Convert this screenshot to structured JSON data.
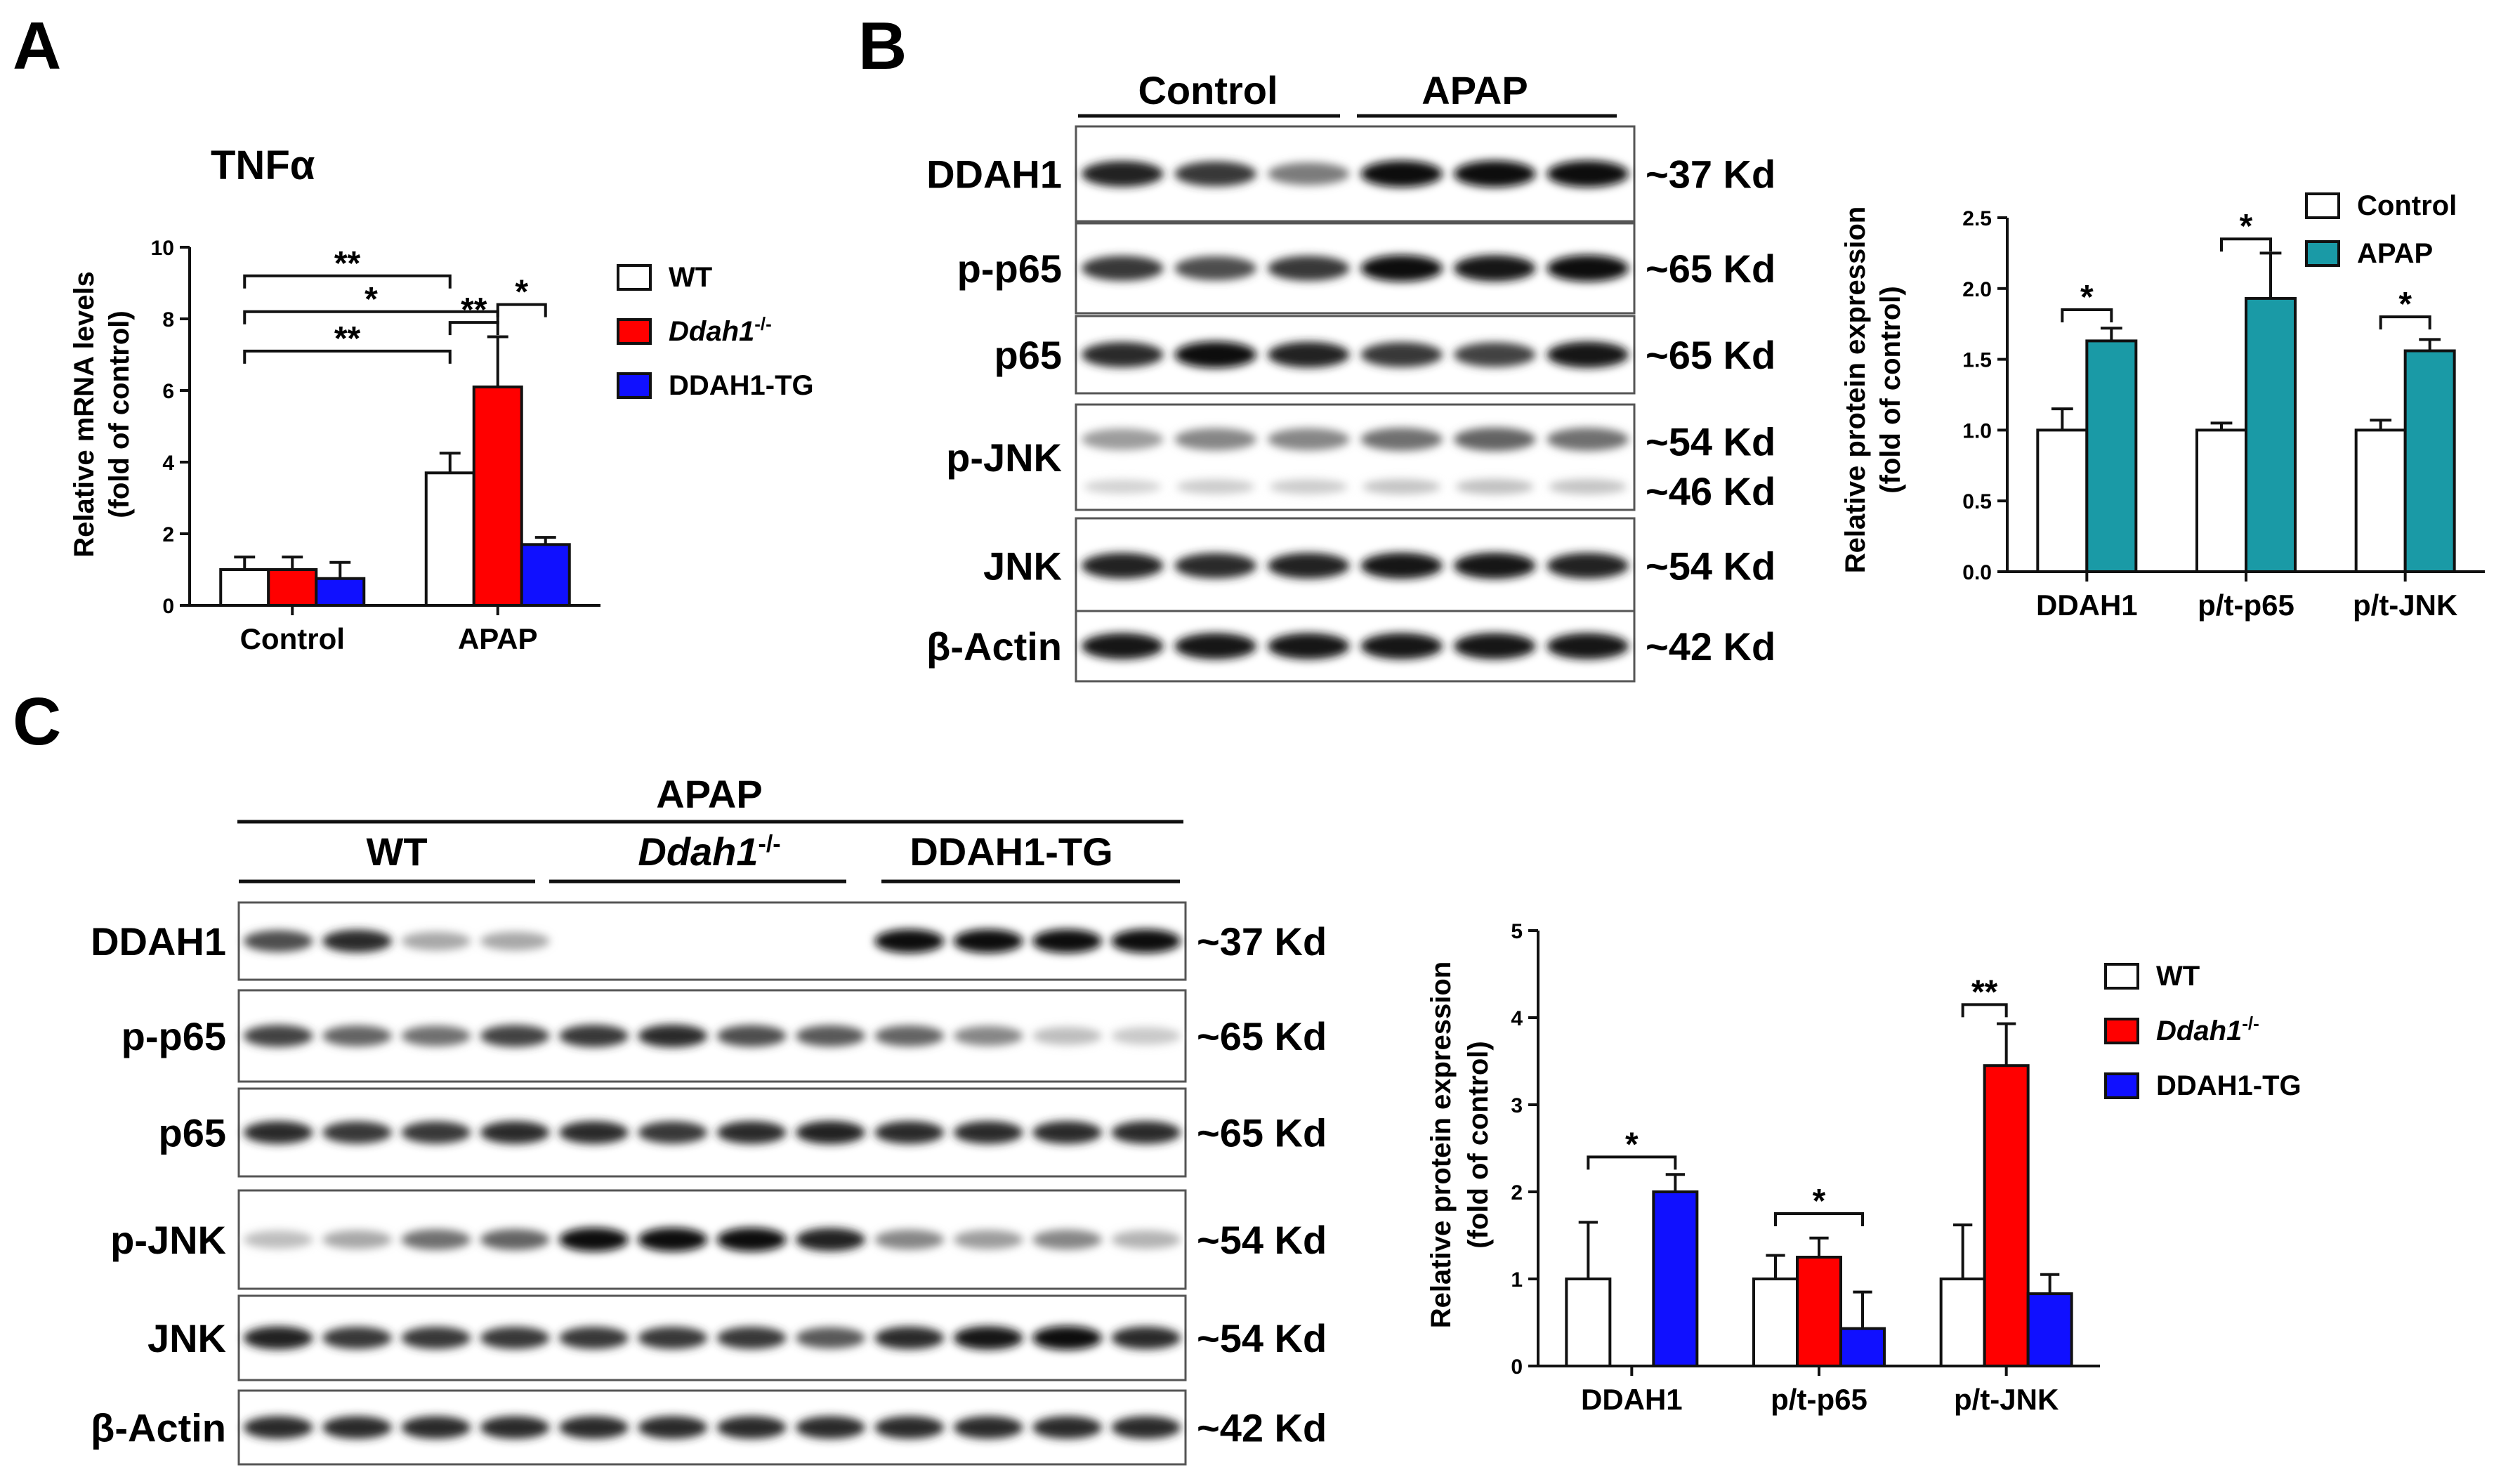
{
  "panel_labels": {
    "a": "A",
    "b": "B",
    "c": "C"
  },
  "colors": {
    "wt": "#ffffff",
    "ko": "#ff0000",
    "tg": "#1010ff",
    "control": "#ffffff",
    "apap": "#1a9aa6"
  },
  "chart_data": [
    {
      "id": "A",
      "type": "bar",
      "title": "TNFα",
      "ylabel_line1": "Relative mRNA levels",
      "ylabel_line2": "(fold of control)",
      "xlabel": "",
      "ylim": [
        0,
        10
      ],
      "yticks": [
        "0",
        "2",
        "4",
        "6",
        "8",
        "10"
      ],
      "categories": [
        "Control",
        "APAP"
      ],
      "series": [
        {
          "name": "WT",
          "values": [
            1.0,
            3.7
          ],
          "errors": [
            0.35,
            0.55
          ]
        },
        {
          "name": "Ddah1-/-",
          "values": [
            1.0,
            6.1
          ],
          "errors": [
            0.35,
            1.4
          ]
        },
        {
          "name": "DDAH1-TG",
          "values": [
            0.75,
            1.7
          ],
          "errors": [
            0.45,
            0.2
          ]
        }
      ],
      "legend": [
        {
          "label": "WT",
          "italic": false
        },
        {
          "label": "Ddah1",
          "sup": "-/-",
          "italic": true
        },
        {
          "label": "DDAH1-TG",
          "italic": false
        }
      ],
      "significance": [
        "*",
        "**",
        "**",
        "*",
        "**"
      ]
    },
    {
      "id": "B",
      "type": "bar",
      "ylabel_line1": "Relative protein expression",
      "ylabel_line2": "(fold of control)",
      "ylim": [
        0,
        2.5
      ],
      "yticks": [
        "0.0",
        "0.5",
        "1.0",
        "1.5",
        "2.0",
        "2.5"
      ],
      "categories": [
        "DDAH1",
        "p/t-p65",
        "p/t-JNK"
      ],
      "series": [
        {
          "name": "Control",
          "values": [
            1.0,
            1.0,
            1.0
          ],
          "errors": [
            0.15,
            0.05,
            0.07
          ]
        },
        {
          "name": "APAP",
          "values": [
            1.63,
            1.93,
            1.56
          ],
          "errors": [
            0.09,
            0.32,
            0.08
          ]
        }
      ],
      "legend": [
        {
          "label": "Control"
        },
        {
          "label": "APAP"
        }
      ],
      "significance": [
        "*",
        "*",
        "*"
      ]
    },
    {
      "id": "C",
      "type": "bar",
      "ylabel_line1": "Relative protein expression",
      "ylabel_line2": "(fold of control)",
      "ylim": [
        0,
        5
      ],
      "yticks": [
        "0",
        "1",
        "2",
        "3",
        "4",
        "5"
      ],
      "categories": [
        "DDAH1",
        "p/t-p65",
        "p/t-JNK"
      ],
      "series": [
        {
          "name": "WT",
          "values": [
            1.0,
            1.0,
            1.0
          ],
          "errors": [
            0.65,
            0.27,
            0.62
          ]
        },
        {
          "name": "Ddah1-/-",
          "values": [
            0.0,
            1.25,
            3.45
          ],
          "errors": [
            0.0,
            0.22,
            0.48
          ]
        },
        {
          "name": "DDAH1-TG",
          "values": [
            2.0,
            0.43,
            0.83
          ],
          "errors": [
            0.2,
            0.42,
            0.22
          ]
        }
      ],
      "legend": [
        {
          "label": "WT",
          "italic": false
        },
        {
          "label": "Ddah1",
          "sup": "-/-",
          "italic": true
        },
        {
          "label": "DDAH1-TG",
          "italic": false
        }
      ],
      "significance": [
        "*",
        "*",
        "**"
      ]
    }
  ],
  "blot_b": {
    "groups": [
      "Control",
      "APAP"
    ],
    "rows": [
      {
        "label": "DDAH1",
        "size": "~37 Kd"
      },
      {
        "label": "p-p65",
        "size": "~65 Kd"
      },
      {
        "label": "p65",
        "size": "~65 Kd"
      },
      {
        "label": "p-JNK",
        "size": "~54 Kd",
        "size2": "~46 Kd"
      },
      {
        "label": "JNK",
        "size": "~54 Kd"
      },
      {
        "label": "β-Actin",
        "size": "~42 Kd"
      }
    ],
    "intensities": [
      [
        0.9,
        0.8,
        0.5,
        1.0,
        1.0,
        1.0
      ],
      [
        0.8,
        0.7,
        0.8,
        1.0,
        0.95,
        1.0
      ],
      [
        0.85,
        1.0,
        0.9,
        0.8,
        0.75,
        0.95
      ],
      [
        0.35,
        0.45,
        0.45,
        0.55,
        0.6,
        0.55
      ],
      [
        0.9,
        0.85,
        0.9,
        0.95,
        0.95,
        0.9
      ],
      [
        0.95,
        0.95,
        0.95,
        0.95,
        0.95,
        0.95
      ]
    ]
  },
  "blot_c": {
    "top_group": "APAP",
    "groups": [
      {
        "label": "WT",
        "italic": false
      },
      {
        "label": "Ddah1",
        "sup": "-/-",
        "italic": true
      },
      {
        "label": "DDAH1-TG",
        "italic": false
      }
    ],
    "rows": [
      {
        "label": "DDAH1",
        "size": "~37 Kd"
      },
      {
        "label": "p-p65",
        "size": "~65 Kd"
      },
      {
        "label": "p65",
        "size": "~65 Kd"
      },
      {
        "label": "p-JNK",
        "size": "~54 Kd"
      },
      {
        "label": "JNK",
        "size": "~54 Kd"
      },
      {
        "label": "β-Actin",
        "size": "~42 Kd"
      }
    ],
    "intensities": [
      [
        0.7,
        0.85,
        0.3,
        0.3,
        0,
        0,
        0,
        0,
        1.0,
        1.0,
        1.0,
        1.0
      ],
      [
        0.75,
        0.6,
        0.55,
        0.75,
        0.8,
        0.85,
        0.7,
        0.65,
        0.6,
        0.45,
        0.2,
        0.15
      ],
      [
        0.85,
        0.8,
        0.8,
        0.85,
        0.85,
        0.8,
        0.85,
        0.9,
        0.85,
        0.85,
        0.85,
        0.85
      ],
      [
        0.2,
        0.3,
        0.55,
        0.6,
        1.0,
        1.0,
        1.0,
        0.9,
        0.45,
        0.35,
        0.45,
        0.25
      ],
      [
        0.9,
        0.8,
        0.8,
        0.8,
        0.8,
        0.8,
        0.8,
        0.65,
        0.85,
        0.95,
        1.0,
        0.85
      ],
      [
        0.85,
        0.85,
        0.85,
        0.85,
        0.85,
        0.85,
        0.85,
        0.85,
        0.85,
        0.85,
        0.85,
        0.85
      ]
    ]
  }
}
